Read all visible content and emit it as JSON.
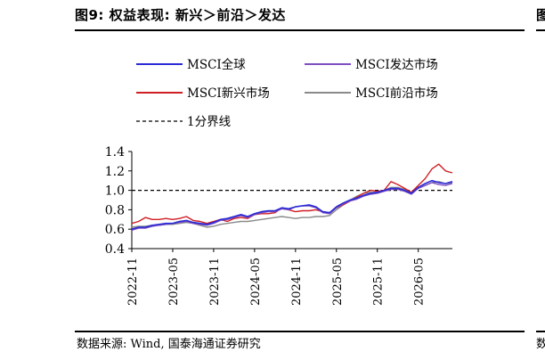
{
  "header": {
    "title": "图9:  权益表现:  新兴＞前沿＞发达",
    "right_edge_glyph": "图"
  },
  "footer": {
    "source": "数据来源:  Wind,  国泰海通证券研究",
    "right_edge_glyph": "数"
  },
  "colors": {
    "msci_acwi": "#2b2bd6",
    "msci_developed": "#7d4fc2",
    "msci_emerging": "#d01f24",
    "msci_frontier": "#8a8a8a",
    "reference": "#000000"
  },
  "chart_data": {
    "type": "line",
    "title": "",
    "xlabel": "",
    "ylabel": "",
    "ylim": [
      0.4,
      1.4
    ],
    "yticks": [
      "0.4",
      "0.6",
      "0.8",
      "1.0",
      "1.2",
      "1.4"
    ],
    "xticks": [
      "2022-11",
      "2023-05",
      "2023-11",
      "2024-05",
      "2024-11",
      "2025-05",
      "2025-11",
      "2026-05"
    ],
    "xlim": [
      "2022-11",
      "2026-10"
    ],
    "legend_position": "top",
    "reference_line": {
      "name": "1分界线",
      "y": 1.0,
      "style": "dashed"
    },
    "x": [
      "2022-11",
      "2022-12",
      "2023-01",
      "2023-02",
      "2023-03",
      "2023-04",
      "2023-05",
      "2023-06",
      "2023-07",
      "2023-08",
      "2023-09",
      "2023-10",
      "2023-11",
      "2023-12",
      "2024-01",
      "2024-02",
      "2024-03",
      "2024-04",
      "2024-05",
      "2024-06",
      "2024-07",
      "2024-08",
      "2024-09",
      "2024-10",
      "2024-11",
      "2024-12",
      "2025-01",
      "2025-02",
      "2025-03",
      "2025-04",
      "2025-05",
      "2025-06",
      "2025-07",
      "2025-08",
      "2025-09",
      "2025-10",
      "2025-11",
      "2025-12",
      "2026-01",
      "2026-02",
      "2026-03",
      "2026-04",
      "2026-05",
      "2026-06",
      "2026-07",
      "2026-08",
      "2026-09",
      "2026-10"
    ],
    "series": [
      {
        "name": "MSCI全球",
        "color_key": "msci_acwi",
        "values": [
          0.6,
          0.62,
          0.62,
          0.64,
          0.65,
          0.66,
          0.66,
          0.68,
          0.69,
          0.67,
          0.66,
          0.65,
          0.67,
          0.7,
          0.71,
          0.73,
          0.75,
          0.73,
          0.76,
          0.78,
          0.79,
          0.79,
          0.82,
          0.81,
          0.83,
          0.84,
          0.85,
          0.83,
          0.78,
          0.77,
          0.83,
          0.87,
          0.9,
          0.92,
          0.95,
          0.97,
          0.98,
          1.0,
          1.02,
          1.02,
          1.0,
          0.97,
          1.03,
          1.07,
          1.1,
          1.08,
          1.07,
          1.09
        ]
      },
      {
        "name": "MSCI发达市场",
        "color_key": "msci_developed",
        "values": [
          0.59,
          0.61,
          0.61,
          0.63,
          0.64,
          0.65,
          0.66,
          0.67,
          0.68,
          0.66,
          0.65,
          0.64,
          0.66,
          0.69,
          0.7,
          0.72,
          0.74,
          0.72,
          0.75,
          0.77,
          0.78,
          0.78,
          0.81,
          0.8,
          0.83,
          0.84,
          0.84,
          0.82,
          0.77,
          0.76,
          0.82,
          0.86,
          0.89,
          0.91,
          0.94,
          0.96,
          0.97,
          0.99,
          1.01,
          1.01,
          0.99,
          0.96,
          1.02,
          1.05,
          1.08,
          1.06,
          1.05,
          1.07
        ]
      },
      {
        "name": "MSCI新兴市场",
        "color_key": "msci_emerging",
        "values": [
          0.66,
          0.68,
          0.72,
          0.7,
          0.7,
          0.71,
          0.7,
          0.71,
          0.73,
          0.69,
          0.68,
          0.66,
          0.68,
          0.7,
          0.68,
          0.71,
          0.72,
          0.71,
          0.75,
          0.76,
          0.76,
          0.77,
          0.82,
          0.8,
          0.78,
          0.79,
          0.79,
          0.8,
          0.78,
          0.77,
          0.82,
          0.85,
          0.89,
          0.93,
          0.97,
          1.0,
          0.99,
          1.0,
          1.09,
          1.06,
          1.02,
          0.98,
          1.05,
          1.12,
          1.22,
          1.27,
          1.2,
          1.18
        ]
      },
      {
        "name": "MSCI前沿市场",
        "color_key": "msci_frontier",
        "values": [
          0.62,
          0.63,
          0.63,
          0.64,
          0.64,
          0.65,
          0.65,
          0.66,
          0.67,
          0.66,
          0.64,
          0.62,
          0.63,
          0.65,
          0.66,
          0.67,
          0.68,
          0.68,
          0.69,
          0.7,
          0.71,
          0.72,
          0.73,
          0.72,
          0.71,
          0.72,
          0.72,
          0.73,
          0.73,
          0.74,
          0.8,
          0.85,
          0.9,
          0.94,
          0.97,
          0.98,
          0.98,
          1.0,
          1.03,
          1.03,
          1.01,
          0.98,
          1.02,
          1.05,
          1.08,
          1.09,
          1.07,
          1.08
        ]
      }
    ]
  }
}
